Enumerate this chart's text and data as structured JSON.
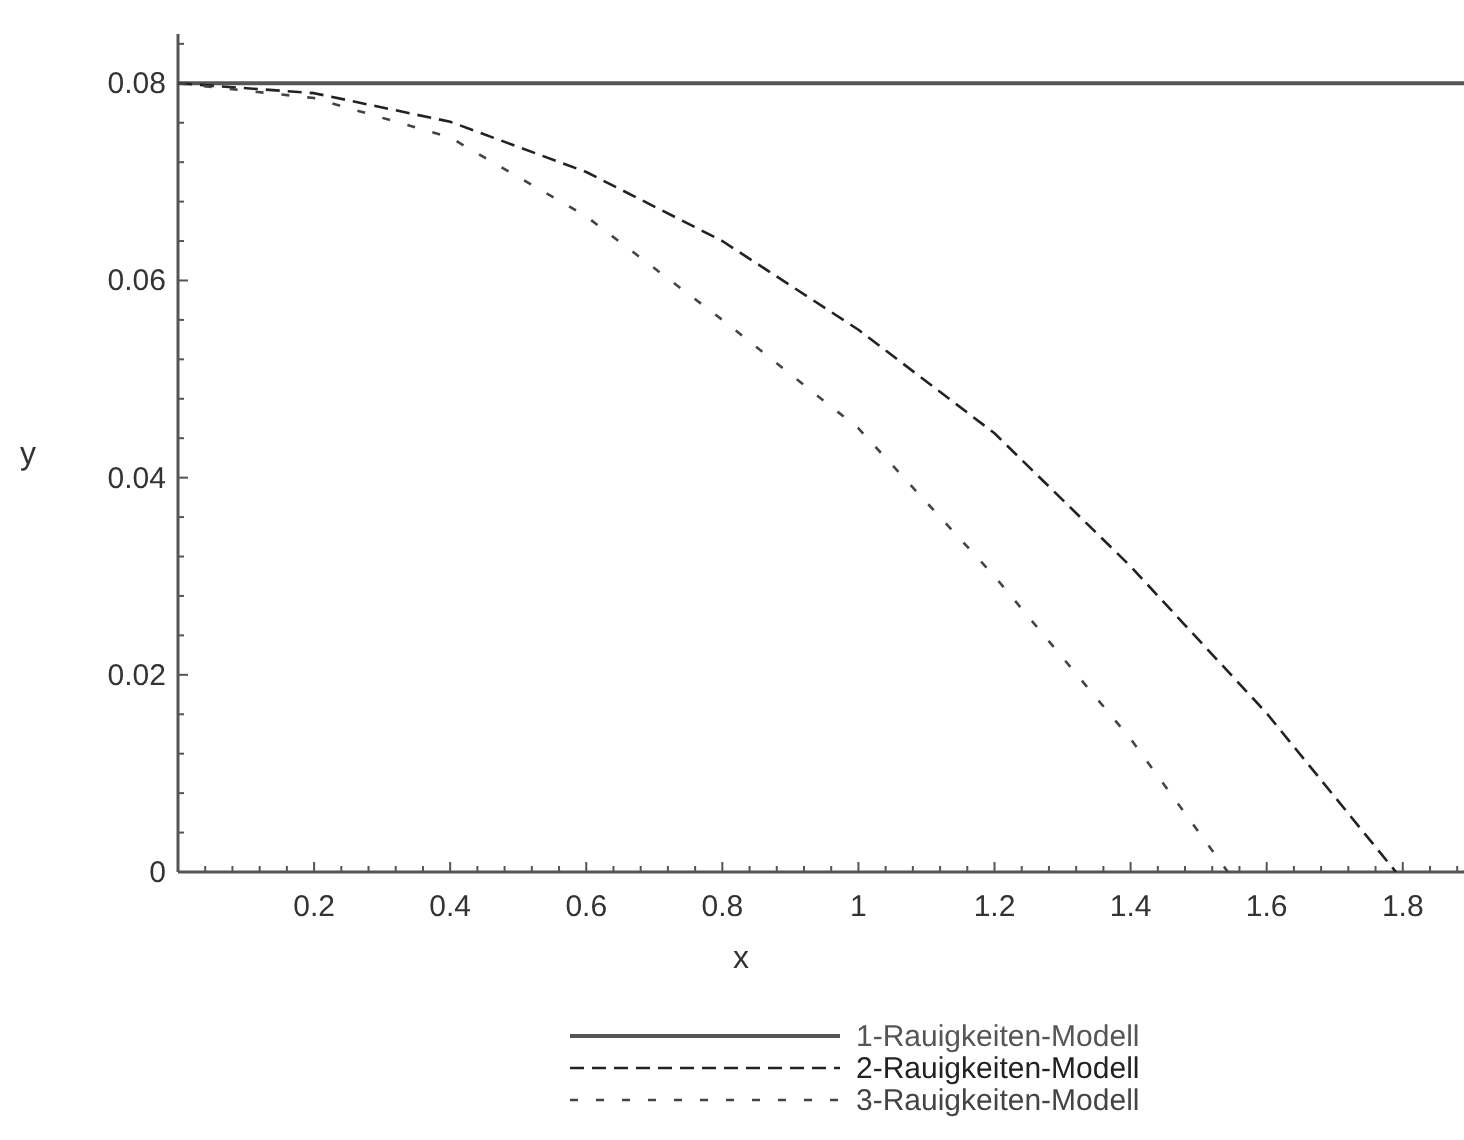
{
  "chart_data": {
    "type": "line",
    "xlabel": "x",
    "ylabel": "y",
    "xlim": [
      0,
      1.89
    ],
    "ylim": [
      0,
      0.085
    ],
    "xticks": [
      {
        "value": 0.04,
        "label": null
      },
      {
        "value": 0.08,
        "label": null
      },
      {
        "value": 0.12,
        "label": null
      },
      {
        "value": 0.16,
        "label": null
      },
      0.2,
      {
        "value": 0.24,
        "label": null
      },
      {
        "value": 0.28,
        "label": null
      },
      {
        "value": 0.32,
        "label": null
      },
      {
        "value": 0.36,
        "label": null
      },
      0.4,
      {
        "value": 0.44,
        "label": null
      },
      {
        "value": 0.48,
        "label": null
      },
      {
        "value": 0.52,
        "label": null
      },
      {
        "value": 0.56,
        "label": null
      },
      0.6,
      {
        "value": 0.64,
        "label": null
      },
      {
        "value": 0.68,
        "label": null
      },
      {
        "value": 0.72,
        "label": null
      },
      {
        "value": 0.76,
        "label": null
      },
      0.8,
      {
        "value": 0.84,
        "label": null
      },
      {
        "value": 0.88,
        "label": null
      },
      {
        "value": 0.92,
        "label": null
      },
      {
        "value": 0.96,
        "label": null
      },
      1,
      {
        "value": 1.04,
        "label": null
      },
      {
        "value": 1.08,
        "label": null
      },
      {
        "value": 1.12,
        "label": null
      },
      {
        "value": 1.16,
        "label": null
      },
      1.2,
      {
        "value": 1.24,
        "label": null
      },
      {
        "value": 1.28,
        "label": null
      },
      {
        "value": 1.32,
        "label": null
      },
      {
        "value": 1.36,
        "label": null
      },
      1.4,
      {
        "value": 1.44,
        "label": null
      },
      {
        "value": 1.48,
        "label": null
      },
      {
        "value": 1.52,
        "label": null
      },
      {
        "value": 1.56,
        "label": null
      },
      1.6,
      {
        "value": 1.64,
        "label": null
      },
      {
        "value": 1.68,
        "label": null
      },
      {
        "value": 1.72,
        "label": null
      },
      {
        "value": 1.76,
        "label": null
      },
      1.8,
      {
        "value": 1.84,
        "label": null
      },
      {
        "value": 1.88,
        "label": null
      }
    ],
    "yticks": [
      0,
      {
        "value": 0.004,
        "label": null
      },
      {
        "value": 0.008,
        "label": null
      },
      {
        "value": 0.012,
        "label": null
      },
      {
        "value": 0.016,
        "label": null
      },
      0.02,
      {
        "value": 0.024,
        "label": null
      },
      {
        "value": 0.028,
        "label": null
      },
      {
        "value": 0.032,
        "label": null
      },
      {
        "value": 0.036,
        "label": null
      },
      0.04,
      {
        "value": 0.044,
        "label": null
      },
      {
        "value": 0.048,
        "label": null
      },
      {
        "value": 0.052,
        "label": null
      },
      {
        "value": 0.056,
        "label": null
      },
      0.06,
      {
        "value": 0.064,
        "label": null
      },
      {
        "value": 0.068,
        "label": null
      },
      {
        "value": 0.072,
        "label": null
      },
      {
        "value": 0.076,
        "label": null
      },
      0.08,
      {
        "value": 0.084,
        "label": null
      }
    ],
    "legend": "bottom",
    "series": [
      {
        "name": "1-Rauigkeiten-Modell",
        "color": "#555555",
        "line_style": "solid",
        "x": [
          0,
          1.89
        ],
        "values": [
          0.08,
          0.08
        ]
      },
      {
        "name": "2-Rauigkeiten-Modell",
        "color": "#222222",
        "line_style": "dashed",
        "x": [
          0,
          0.2,
          0.4,
          0.6,
          0.8,
          1.0,
          1.2,
          1.4,
          1.6,
          1.79
        ],
        "values": [
          0.08,
          0.079,
          0.0761,
          0.071,
          0.064,
          0.055,
          0.0445,
          0.031,
          0.0161,
          0
        ]
      },
      {
        "name": "3-Rauigkeiten-Modell",
        "color": "#444444",
        "line_style": "dotted",
        "x": [
          0,
          0.2,
          0.4,
          0.6,
          0.8,
          1.0,
          1.2,
          1.4,
          1.543
        ],
        "values": [
          0.08,
          0.0785,
          0.0745,
          0.0665,
          0.056,
          0.045,
          0.03,
          0.0135,
          0
        ]
      }
    ]
  }
}
